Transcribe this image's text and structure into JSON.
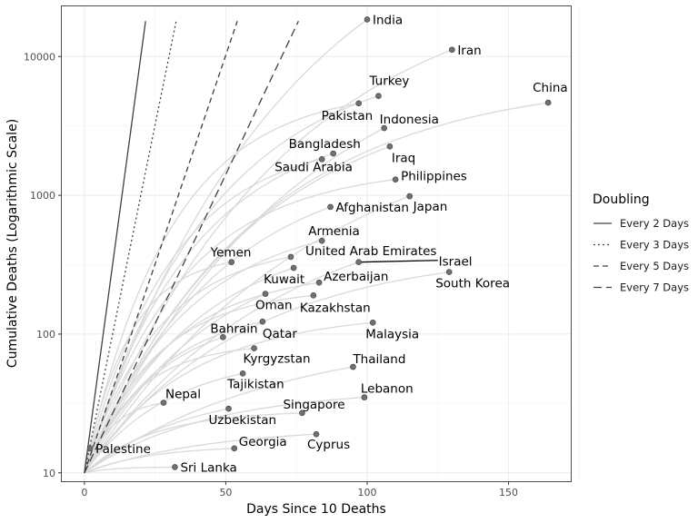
{
  "chart_data": {
    "type": "line",
    "title": "",
    "xlabel": "Days Since 10 Deaths",
    "ylabel": "Cumulative Deaths (Logarithmic Scale)",
    "xlim": [
      -8,
      172
    ],
    "ylim": [
      8.7,
      23000
    ],
    "y_scale": "log",
    "grid": true,
    "x_ticks": [
      0,
      50,
      100,
      150
    ],
    "y_ticks": [
      10,
      100,
      1000,
      10000
    ],
    "legend": {
      "title": "Doubling",
      "position": "right",
      "entries": [
        {
          "label": "Every 2 Days",
          "days": 2,
          "dash": ""
        },
        {
          "label": "Every 3 Days",
          "days": 3,
          "dash": "2,3"
        },
        {
          "label": "Every 5 Days",
          "days": 5,
          "dash": "6,4"
        },
        {
          "label": "Every 7 Days",
          "days": 7,
          "dash": "9,5"
        }
      ]
    },
    "highlight_color": "#000000",
    "background_line_color": "#d9d9d9",
    "point_color": "#707070",
    "countries": [
      {
        "name": "India",
        "x": 100,
        "y": 18500,
        "label_dx": 6,
        "label_dy": 5
      },
      {
        "name": "Iran",
        "x": 130,
        "y": 11200,
        "label_dx": 6,
        "label_dy": 5
      },
      {
        "name": "Turkey",
        "x": 104,
        "y": 5200,
        "label_dx": -10,
        "label_dy": -12
      },
      {
        "name": "China",
        "x": 164,
        "y": 4650,
        "label_dx": -17,
        "label_dy": -12
      },
      {
        "name": "Pakistan",
        "x": 97,
        "y": 4600,
        "label_dx": -41,
        "label_dy": 18
      },
      {
        "name": "Indonesia",
        "x": 106,
        "y": 3050,
        "label_dx": -5,
        "label_dy": -5
      },
      {
        "name": "Iraq",
        "x": 108,
        "y": 2250,
        "label_dx": 2,
        "label_dy": 17
      },
      {
        "name": "Bangladesh",
        "x": 88,
        "y": 2000,
        "label_dx": -49,
        "label_dy": -6
      },
      {
        "name": "Saudi Arabia",
        "x": 84,
        "y": 1820,
        "label_dx": -52,
        "label_dy": 13
      },
      {
        "name": "Philippines",
        "x": 110,
        "y": 1300,
        "label_dx": 6,
        "label_dy": 1
      },
      {
        "name": "Japan",
        "x": 115,
        "y": 985,
        "label_dx": 4,
        "label_dy": 16
      },
      {
        "name": "Afghanistan",
        "x": 87,
        "y": 825,
        "label_dx": 6,
        "label_dy": 5
      },
      {
        "name": "Armenia",
        "x": 84,
        "y": 470,
        "label_dx": -15,
        "label_dy": -6
      },
      {
        "name": "United Arab Emirates",
        "x": 73,
        "y": 360,
        "label_dx": 16,
        "label_dy": -2
      },
      {
        "name": "Yemen",
        "x": 52,
        "y": 330,
        "label_dx": -23,
        "label_dy": -6
      },
      {
        "name": "Israel",
        "x": 97,
        "y": 330,
        "label_dx": 88,
        "label_dy": 4,
        "highlight": true,
        "line_to_x": 125
      },
      {
        "name": "Kuwait",
        "x": 74,
        "y": 300,
        "label_dx": -33,
        "label_dy": 17
      },
      {
        "name": "South Korea",
        "x": 129,
        "y": 280,
        "label_dx": -15,
        "label_dy": 17
      },
      {
        "name": "Azerbaijan",
        "x": 83,
        "y": 235,
        "label_dx": 5,
        "label_dy": -2
      },
      {
        "name": "Kazakhstan",
        "x": 81,
        "y": 190,
        "label_dx": -15,
        "label_dy": 18
      },
      {
        "name": "Oman",
        "x": 64,
        "y": 195,
        "label_dx": -11,
        "label_dy": 17
      },
      {
        "name": "Bahrain",
        "x": 49,
        "y": 95,
        "label_dx": -14,
        "label_dy": -5
      },
      {
        "name": "Qatar",
        "x": 63,
        "y": 123,
        "label_dx": 0,
        "label_dy": 18
      },
      {
        "name": "Malaysia",
        "x": 102,
        "y": 121,
        "label_dx": -8,
        "label_dy": 17
      },
      {
        "name": "Kyrgyzstan",
        "x": 60,
        "y": 79,
        "label_dx": -12,
        "label_dy": 16
      },
      {
        "name": "Thailand",
        "x": 95,
        "y": 58,
        "label_dx": 0,
        "label_dy": -4
      },
      {
        "name": "Tajikistan",
        "x": 56,
        "y": 52,
        "label_dx": -17,
        "label_dy": 16
      },
      {
        "name": "Lebanon",
        "x": 99,
        "y": 35,
        "label_dx": -4,
        "label_dy": -5
      },
      {
        "name": "Nepal",
        "x": 28,
        "y": 32,
        "label_dx": 2,
        "label_dy": -5
      },
      {
        "name": "Singapore",
        "x": 77,
        "y": 27,
        "label_dx": -21,
        "label_dy": -5
      },
      {
        "name": "Uzbekistan",
        "x": 51,
        "y": 29,
        "label_dx": -22,
        "label_dy": 17
      },
      {
        "name": "Cyprus",
        "x": 82,
        "y": 19,
        "label_dx": -10,
        "label_dy": 16
      },
      {
        "name": "Georgia",
        "x": 53,
        "y": 15,
        "label_dx": 5,
        "label_dy": -3
      },
      {
        "name": "Palestine",
        "x": 2,
        "y": 15,
        "label_dx": 6,
        "label_dy": 5
      },
      {
        "name": "Sri Lanka",
        "x": 32,
        "y": 11,
        "label_dx": 6,
        "label_dy": 5
      }
    ]
  }
}
